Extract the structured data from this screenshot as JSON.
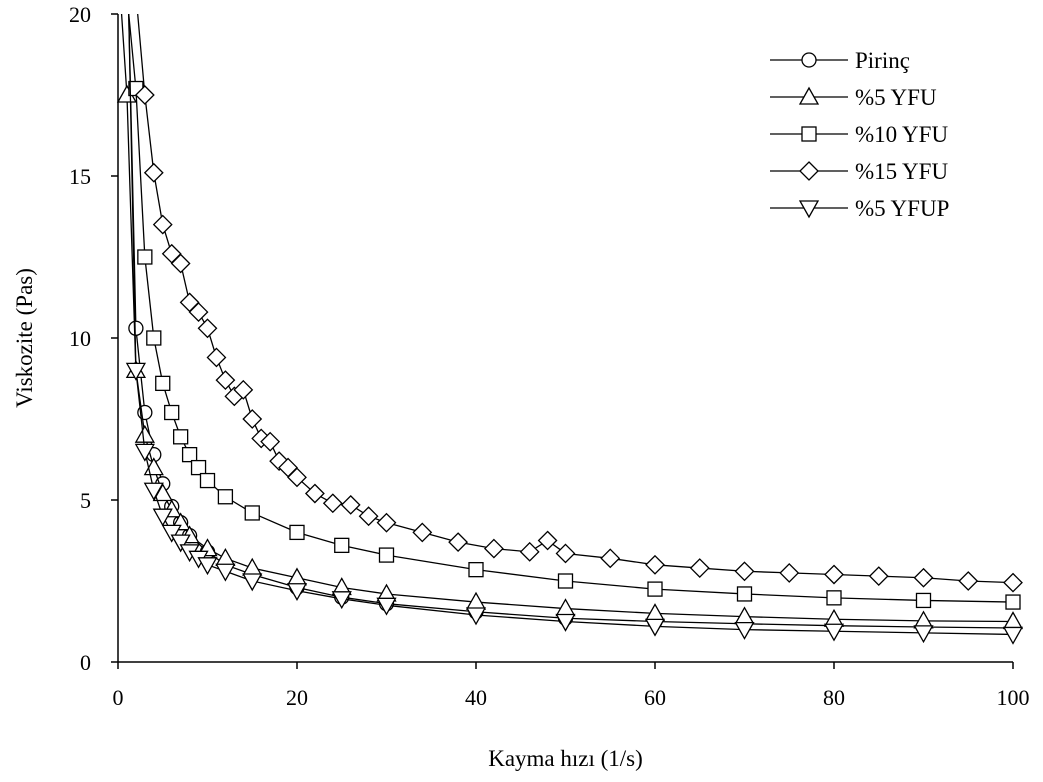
{
  "chart_data": {
    "type": "scatter",
    "title": "",
    "xlabel": "Kayma hızı (1/s)",
    "ylabel": "Viskozite (Pas)",
    "xlim": [
      0,
      100
    ],
    "ylim": [
      0,
      20
    ],
    "xticks": [
      "0",
      "20",
      "40",
      "60",
      "80",
      "100"
    ],
    "yticks": [
      "0",
      "5",
      "10",
      "15",
      "20"
    ],
    "grid": false,
    "legend_position": "top-right",
    "marker_color": "#000000",
    "series": [
      {
        "name": "Pirinç",
        "marker": "circle",
        "x": [
          2,
          3,
          4,
          5,
          6,
          7,
          8,
          10,
          12,
          15,
          20,
          25,
          30,
          40,
          50,
          60,
          70,
          80,
          90,
          100
        ],
        "y": [
          10.3,
          7.7,
          6.4,
          5.5,
          4.8,
          4.3,
          3.9,
          3.4,
          3.0,
          2.7,
          2.3,
          2.0,
          1.8,
          1.55,
          1.35,
          1.25,
          1.18,
          1.12,
          1.08,
          1.05
        ]
      },
      {
        "name": "%5 YFU",
        "marker": "triangle-up",
        "x": [
          1,
          2,
          3,
          4,
          5,
          6,
          7,
          8,
          10,
          12,
          15,
          20,
          25,
          30,
          40,
          50,
          60,
          70,
          80,
          90,
          100
        ],
        "y": [
          17.5,
          9.0,
          7.0,
          6.0,
          5.2,
          4.7,
          4.3,
          3.9,
          3.5,
          3.2,
          2.9,
          2.6,
          2.3,
          2.1,
          1.85,
          1.65,
          1.5,
          1.4,
          1.32,
          1.27,
          1.25
        ]
      },
      {
        "name": "%10 YFU",
        "marker": "square",
        "x": [
          2,
          3,
          4,
          5,
          6,
          7,
          8,
          9,
          10,
          12,
          15,
          20,
          25,
          30,
          40,
          50,
          60,
          70,
          80,
          90,
          100
        ],
        "y": [
          17.7,
          12.5,
          10.0,
          8.6,
          7.7,
          6.95,
          6.4,
          6.0,
          5.6,
          5.1,
          4.6,
          4.0,
          3.6,
          3.3,
          2.85,
          2.5,
          2.25,
          2.1,
          1.98,
          1.9,
          1.85
        ]
      },
      {
        "name": "%15 YFU",
        "marker": "diamond",
        "x": [
          3,
          4,
          5,
          6,
          7,
          8,
          9,
          10,
          11,
          12,
          13,
          14,
          15,
          16,
          17,
          18,
          19,
          20,
          22,
          24,
          26,
          28,
          30,
          34,
          38,
          42,
          46,
          48,
          50,
          55,
          60,
          65,
          70,
          75,
          80,
          85,
          90,
          95,
          100
        ],
        "y": [
          17.5,
          15.1,
          13.5,
          12.6,
          12.3,
          11.1,
          10.8,
          10.3,
          9.4,
          8.7,
          8.2,
          8.4,
          7.5,
          6.9,
          6.8,
          6.2,
          6.0,
          5.7,
          5.2,
          4.9,
          4.85,
          4.5,
          4.3,
          4.0,
          3.7,
          3.5,
          3.4,
          3.75,
          3.35,
          3.2,
          3.0,
          2.9,
          2.8,
          2.75,
          2.7,
          2.65,
          2.6,
          2.5,
          2.45
        ]
      },
      {
        "name": "%5 YFUP",
        "marker": "triangle-down",
        "x": [
          2,
          3,
          4,
          5,
          6,
          7,
          8,
          9,
          10,
          12,
          15,
          20,
          25,
          30,
          40,
          50,
          60,
          70,
          80,
          90,
          100
        ],
        "y": [
          9.0,
          6.5,
          5.3,
          4.5,
          4.0,
          3.7,
          3.4,
          3.2,
          3.0,
          2.8,
          2.5,
          2.2,
          1.95,
          1.75,
          1.45,
          1.25,
          1.1,
          1.0,
          0.95,
          0.9,
          0.85
        ]
      }
    ]
  }
}
